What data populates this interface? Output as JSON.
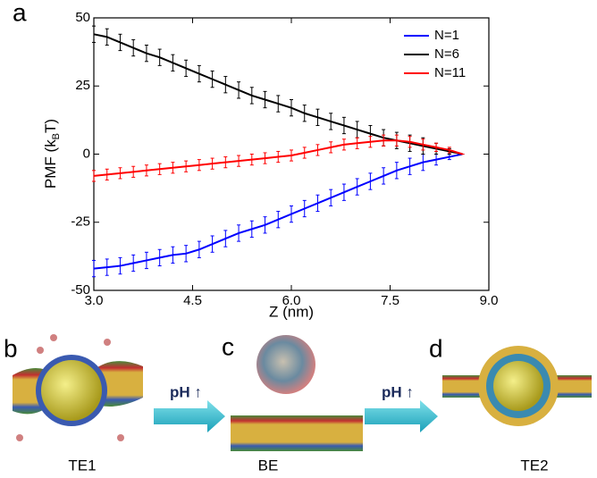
{
  "chart_data": {
    "type": "line",
    "panel_label": "a",
    "xlabel": "Z (nm)",
    "ylabel_parts": [
      "PMF (k",
      "B",
      "T)"
    ],
    "x": [
      3.0,
      3.2,
      3.4,
      3.6,
      3.8,
      4.0,
      4.2,
      4.4,
      4.6,
      4.8,
      5.0,
      5.2,
      5.4,
      5.6,
      5.8,
      6.0,
      6.2,
      6.4,
      6.6,
      6.8,
      7.0,
      7.2,
      7.4,
      7.6,
      7.8,
      8.0,
      8.2,
      8.4,
      8.6
    ],
    "series": [
      {
        "name": "N=1",
        "color": "#0000ff",
        "values": [
          -42,
          -41.5,
          -41,
          -40,
          -39,
          -38,
          -37,
          -36.5,
          -35,
          -33,
          -31,
          -29,
          -27.5,
          -26,
          -24,
          -22,
          -20,
          -18,
          -16,
          -14,
          -12,
          -10,
          -8,
          -6,
          -4.5,
          -3,
          -2,
          -1,
          0
        ],
        "errors": [
          3,
          3,
          3,
          3,
          3,
          3,
          3,
          3,
          3,
          3,
          3,
          3,
          3,
          3,
          3,
          3,
          3,
          3,
          3,
          3,
          3,
          3,
          3,
          3,
          3,
          3,
          2,
          1,
          0
        ]
      },
      {
        "name": "N=6",
        "color": "#000000",
        "values": [
          44,
          43,
          41,
          39,
          37,
          35.5,
          33.5,
          31.5,
          29.5,
          27.5,
          25.5,
          23.5,
          21.5,
          20,
          18.5,
          17,
          15,
          13.5,
          12,
          10.5,
          9,
          7.5,
          6,
          5,
          4,
          3,
          2,
          1,
          0
        ],
        "errors": [
          3,
          3,
          3,
          3,
          3,
          3,
          3,
          3,
          3,
          3,
          3,
          3,
          3,
          3,
          3,
          3,
          3,
          3,
          3,
          3,
          3,
          3,
          3,
          3,
          3,
          3,
          2,
          1,
          0
        ]
      },
      {
        "name": "N=11",
        "color": "#ff0000",
        "values": [
          -8,
          -7.5,
          -7,
          -6.5,
          -6,
          -5.5,
          -5,
          -4.5,
          -4,
          -3.5,
          -3,
          -2.5,
          -2,
          -1.5,
          -1,
          -0.5,
          0.5,
          1.5,
          2.5,
          3.5,
          4,
          4.5,
          5,
          5,
          4.5,
          3.5,
          2.5,
          1.5,
          0
        ],
        "errors": [
          2,
          2,
          2,
          2,
          2,
          2,
          2,
          2,
          2,
          2,
          2,
          2,
          2,
          2,
          2,
          2,
          2,
          2,
          2,
          2,
          2,
          2,
          2,
          2,
          2,
          2,
          1.5,
          1,
          0
        ]
      }
    ],
    "xlim": [
      3.0,
      9.0
    ],
    "ylim": [
      -50,
      50
    ],
    "xticks": [
      {
        "value": 3.0,
        "label": "3.0"
      },
      {
        "value": 4.5,
        "label": "4.5"
      },
      {
        "value": 6.0,
        "label": "6.0"
      },
      {
        "value": 7.5,
        "label": "7.5"
      },
      {
        "value": 9.0,
        "label": "9.0"
      }
    ],
    "yticks": [
      50,
      25,
      0,
      -25,
      -50
    ],
    "legend": "top-right"
  },
  "panels": [
    {
      "label": "b",
      "caption": "TE1"
    },
    {
      "label": "c",
      "caption": "BE"
    },
    {
      "label": "d",
      "caption": "TE2"
    }
  ],
  "arrows": [
    {
      "label": "pH ↑"
    },
    {
      "label": "pH ↑"
    }
  ]
}
